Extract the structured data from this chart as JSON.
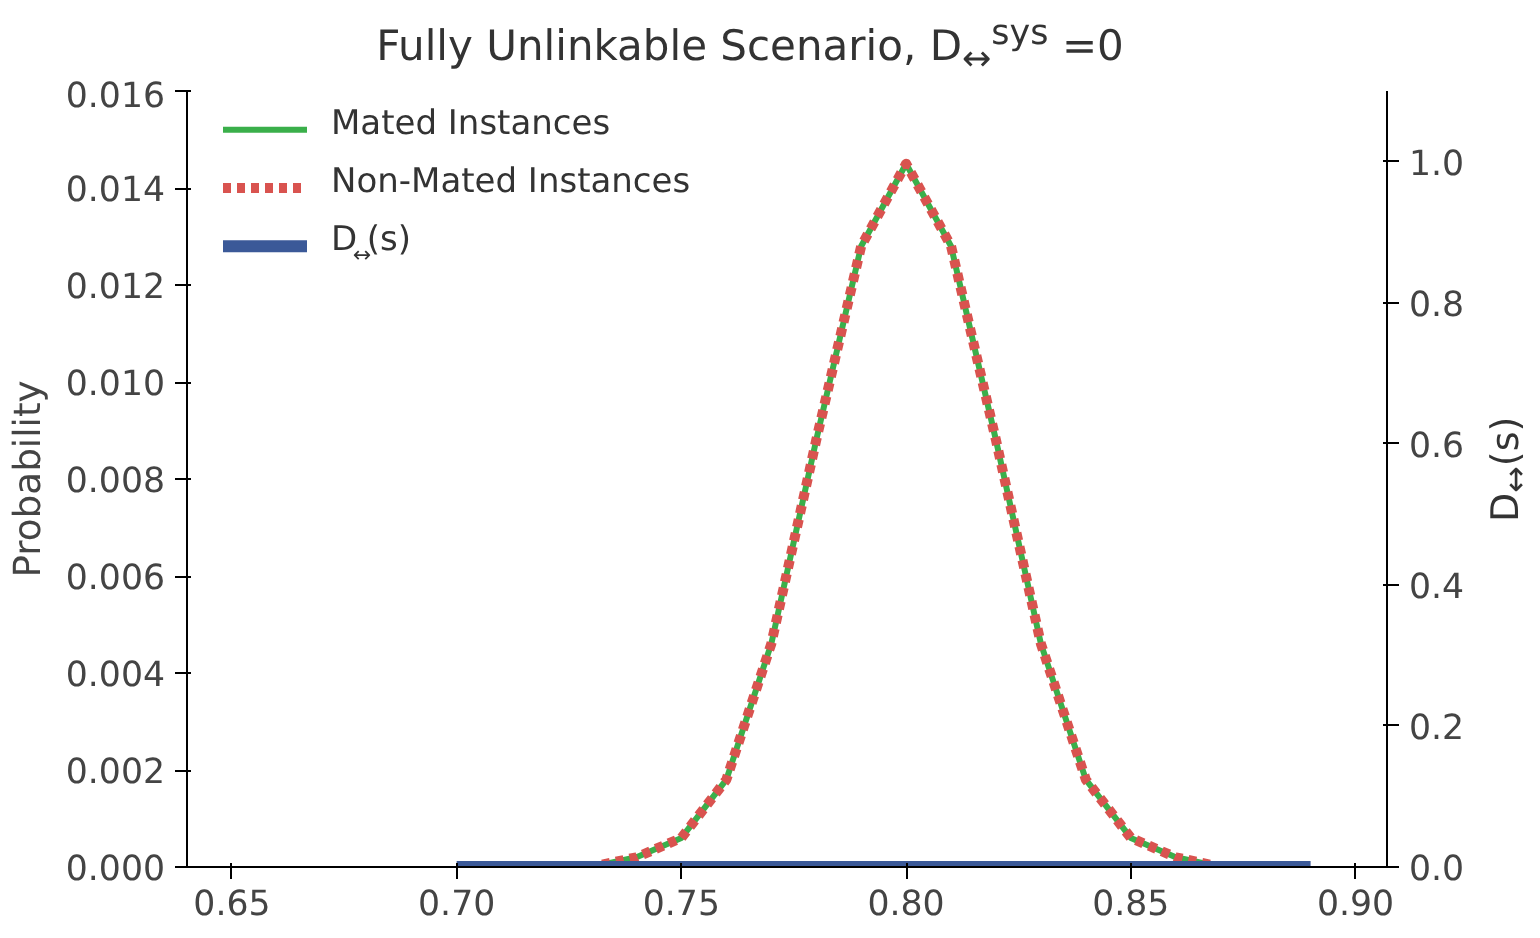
{
  "chart_data": {
    "type": "line",
    "title": "Fully Unlinkable Scenario, D$_{↔}$$^{sys}$ =0",
    "ylabel": "Probability",
    "y2label": "D$_{↔}$(s)",
    "xlim": [
      0.64,
      0.907
    ],
    "xticks": [
      0.65,
      {
        "value": 0.7,
        "label": "0.70"
      },
      0.75,
      {
        "value": 0.8,
        "label": "0.80"
      },
      0.85,
      {
        "value": 0.9,
        "label": "0.90"
      }
    ],
    "ylim": [
      0,
      0.016
    ],
    "yticks": [
      {
        "value": 0,
        "label": "0.000"
      },
      {
        "value": 0.002,
        "label": "0.002"
      },
      {
        "value": 0.004,
        "label": "0.004"
      },
      {
        "value": 0.006,
        "label": "0.006"
      },
      {
        "value": 0.008,
        "label": "0.008"
      },
      {
        "value": 0.01,
        "label": "0.010"
      },
      {
        "value": 0.012,
        "label": "0.012"
      },
      {
        "value": 0.014,
        "label": "0.014"
      },
      {
        "value": 0.016,
        "label": "0.016"
      }
    ],
    "y2lim": [
      0,
      1.1
    ],
    "y2ticks": [
      {
        "value": 0,
        "label": "0.0"
      },
      {
        "value": 0.2,
        "label": "0.2"
      },
      {
        "value": 0.4,
        "label": "0.4"
      },
      {
        "value": 0.6,
        "label": "0.6"
      },
      {
        "value": 0.8,
        "label": "0.8"
      },
      {
        "value": 1,
        "label": "1.0"
      }
    ],
    "grid": false,
    "legend": "top left",
    "series": [
      {
        "name": "Mated Instances",
        "color": "#3aaf4a",
        "line_style": "solid",
        "x": [
          0.73,
          0.74,
          0.75,
          0.76,
          0.77,
          0.78,
          0.79,
          0.8,
          0.81,
          0.82,
          0.83,
          0.84,
          0.85,
          0.86,
          0.87
        ],
        "values": [
          0,
          0.0002,
          0.0006,
          0.0018,
          0.0046,
          0.0088,
          0.0128,
          0.0145,
          0.0128,
          0.0088,
          0.0046,
          0.0018,
          0.0006,
          0.0002,
          0
        ]
      },
      {
        "name": "Non-Mated Instances",
        "color": "#d9534f",
        "line_style": "dashed",
        "x": [
          0.72,
          0.73,
          0.74,
          0.75,
          0.76,
          0.77,
          0.78,
          0.79,
          0.8,
          0.81,
          0.82,
          0.83,
          0.84,
          0.85,
          0.86,
          0.87,
          0.88
        ],
        "values": [
          0,
          0,
          0.0002,
          0.0006,
          0.0018,
          0.0046,
          0.0088,
          0.0128,
          0.0145,
          0.0128,
          0.0088,
          0.0046,
          0.0018,
          0.0006,
          0.0002,
          0,
          0
        ]
      },
      {
        "name": "D$_{↔}$(s)",
        "color": "#3b5998",
        "line_style": "solid",
        "axis": "y2",
        "x": [
          0.7,
          0.72,
          0.74,
          0.76,
          0.78,
          0.8,
          0.82,
          0.84,
          0.86,
          0.88,
          0.89
        ],
        "values": [
          0,
          0,
          0,
          0,
          0,
          0,
          0,
          0,
          0,
          0,
          0
        ]
      }
    ]
  }
}
